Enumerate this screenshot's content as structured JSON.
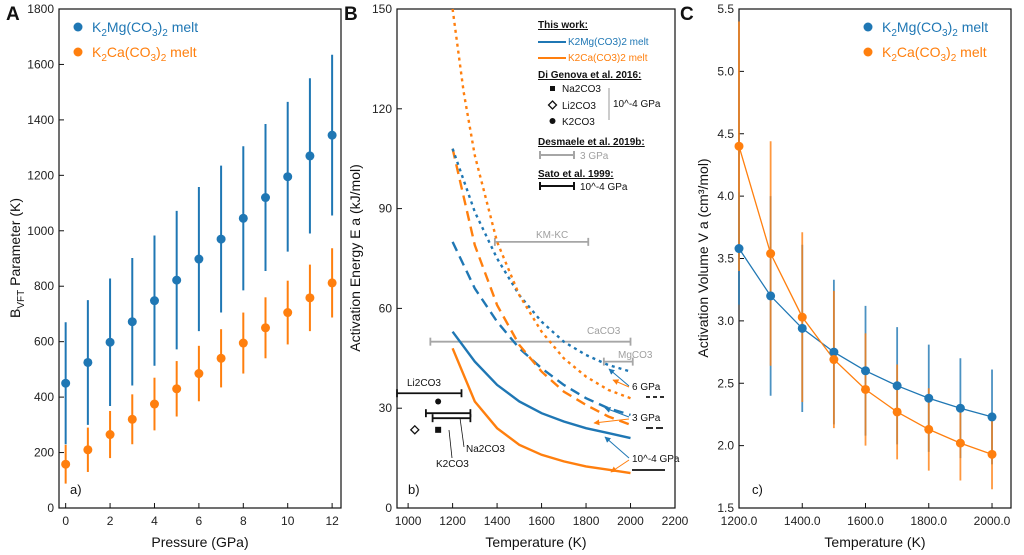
{
  "colors": {
    "blue": "#1f77b4",
    "orange": "#ff7f0e",
    "gray": "#a6a6a6",
    "black": "#111111"
  },
  "chart_data": [
    {
      "type": "scatter",
      "panel_letter": "A",
      "sub_label": "a)",
      "xlabel": "Pressure (GPa)",
      "ylabel": "B_VFT Parameter (K)",
      "ylabel_main": "B",
      "ylabel_sub": "VFT",
      "ylabel_rest": " Parameter (K)",
      "xlim": [
        -0.3,
        12.4
      ],
      "ylim": [
        0,
        1800
      ],
      "xticks": [
        0,
        2,
        4,
        6,
        8,
        10,
        12
      ],
      "yticks": [
        0,
        200,
        400,
        600,
        800,
        1000,
        1200,
        1400,
        1600,
        1800
      ],
      "legend_position": "top-left",
      "series": [
        {
          "name": "K2Mg(CO3)2 melt",
          "legend_main": "K",
          "legend_s1": "2",
          "legend_m2": "Mg(CO",
          "legend_s2": "3",
          "legend_m3": ")",
          "legend_s3": "2",
          "legend_m4": " melt",
          "color": "#1f77b4",
          "x": [
            0,
            1,
            2,
            3,
            4,
            5,
            6,
            7,
            8,
            9,
            10,
            11,
            12
          ],
          "y": [
            450,
            525,
            598,
            672,
            748,
            822,
            898,
            970,
            1045,
            1120,
            1195,
            1270,
            1345
          ],
          "err": [
            220,
            225,
            230,
            230,
            235,
            250,
            260,
            265,
            260,
            265,
            270,
            280,
            290
          ]
        },
        {
          "name": "K2Ca(CO3)2 melt",
          "legend_main": "K",
          "legend_s1": "2",
          "legend_m2": "Ca(CO",
          "legend_s2": "3",
          "legend_m3": ")",
          "legend_s3": "2",
          "legend_m4": " melt",
          "color": "#ff7f0e",
          "x": [
            0,
            1,
            2,
            3,
            4,
            5,
            6,
            7,
            8,
            9,
            10,
            11,
            12
          ],
          "y": [
            158,
            210,
            265,
            320,
            375,
            430,
            485,
            540,
            595,
            650,
            705,
            758,
            812
          ],
          "err": [
            70,
            80,
            85,
            90,
            95,
            100,
            100,
            105,
            110,
            110,
            115,
            120,
            125
          ]
        }
      ]
    },
    {
      "type": "line",
      "panel_letter": "B",
      "sub_label": "b)",
      "xlabel": "Temperature (K)",
      "ylabel": "Activation Energy E a (kJ/mol)",
      "xlim": [
        950,
        2200
      ],
      "ylim": [
        0,
        150
      ],
      "xticks": [
        1000,
        1200,
        1400,
        1600,
        1800,
        2000,
        2200
      ],
      "yticks": [
        0,
        30,
        60,
        90,
        120,
        150
      ],
      "series": [
        {
          "name": "K2Mg(CO3)2 10^-4 GPa",
          "color": "#1f77b4",
          "dash": "solid",
          "x": [
            1200,
            1300,
            1400,
            1500,
            1600,
            1700,
            1800,
            1900,
            2000
          ],
          "y": [
            53,
            44,
            37,
            32,
            28.5,
            26,
            24,
            22.5,
            21
          ]
        },
        {
          "name": "K2Ca(CO3)2 10^-4 GPa",
          "color": "#ff7f0e",
          "dash": "solid",
          "x": [
            1200,
            1300,
            1400,
            1500,
            1600,
            1700,
            1800,
            1900,
            2000
          ],
          "y": [
            48,
            32,
            24,
            19,
            16,
            14,
            12.5,
            11.5,
            10.5
          ]
        },
        {
          "name": "K2Mg(CO3)2 3 GPa",
          "color": "#1f77b4",
          "dash": "dashed",
          "x": [
            1200,
            1300,
            1400,
            1500,
            1600,
            1700,
            1800,
            1900,
            2000
          ],
          "y": [
            80,
            66,
            56,
            48,
            42,
            37,
            33,
            30,
            28
          ]
        },
        {
          "name": "K2Ca(CO3)2 3 GPa",
          "color": "#ff7f0e",
          "dash": "dashed",
          "x": [
            1200,
            1300,
            1400,
            1500,
            1600,
            1700,
            1800,
            1900,
            2000
          ],
          "y": [
            108,
            79,
            61,
            49,
            41,
            35,
            31,
            27.5,
            25
          ]
        },
        {
          "name": "K2Mg(CO3)2 6 GPa",
          "color": "#1f77b4",
          "dash": "dotted",
          "x": [
            1200,
            1300,
            1400,
            1500,
            1600,
            1700,
            1800,
            1900,
            2000
          ],
          "y": [
            108,
            89,
            75,
            64,
            56,
            50,
            46,
            43,
            41
          ]
        },
        {
          "name": "K2Ca(CO3)2 6 GPa",
          "color": "#ff7f0e",
          "dash": "dotted",
          "x": [
            1200,
            1250,
            1300,
            1400,
            1500,
            1600,
            1700,
            1800,
            1900,
            2000
          ],
          "y": [
            150,
            125,
            106,
            80,
            64,
            53,
            45,
            39.5,
            35.5,
            33
          ]
        }
      ],
      "points": [
        {
          "name": "Na2CO3",
          "label": "Na2CO3",
          "symbol": "square",
          "x": 1135,
          "y": 23.5,
          "xerr": 65
        },
        {
          "name": "Li2CO3",
          "label": "Li2CO3",
          "symbol": "diamond",
          "x": 1030,
          "y": 23.5
        },
        {
          "name": "K2CO3",
          "label": "K2CO3",
          "symbol": "circle",
          "x": 1135,
          "y": 32
        }
      ],
      "range_bars": [
        {
          "name": "Li2CO3 range",
          "color": "#111111",
          "x": [
            950,
            1240
          ],
          "y": 34.5
        },
        {
          "name": "KM-KC",
          "label": "KM-KC",
          "color": "#a6a6a6",
          "x": [
            1390,
            1810
          ],
          "y": 80
        },
        {
          "name": "CaCO3",
          "label": "CaCO3",
          "color": "#a6a6a6",
          "x": [
            1100,
            2000
          ],
          "y": 50
        },
        {
          "name": "MgCO3",
          "label": "MgCO3",
          "color": "#a6a6a6",
          "x": [
            1880,
            2010
          ],
          "y": 44
        },
        {
          "name": "Na2CO3 range",
          "color": "#111111",
          "x": [
            1080,
            1280
          ],
          "y": 28.5
        },
        {
          "name": "K2CO3 range",
          "color": "#111111",
          "x": [
            1110,
            1280
          ],
          "y": 27
        }
      ],
      "annotations": [
        {
          "name": "li2co3-label",
          "text": "Li2CO3"
        },
        {
          "name": "na2co3-label",
          "text": "Na2CO3"
        },
        {
          "name": "k2co3-label",
          "text": "K2CO3"
        },
        {
          "name": "kmkc-label",
          "text": "KM-KC"
        },
        {
          "name": "caco3-label",
          "text": "CaCO3"
        },
        {
          "name": "mgco3-label",
          "text": "MgCO3"
        },
        {
          "name": "p6-label",
          "text": "6 GPa"
        },
        {
          "name": "p3-label",
          "text": "3 GPa"
        },
        {
          "name": "p1e4-label",
          "text": "10^-4 GPa"
        }
      ],
      "legend": {
        "this_work": "This work:",
        "mg_entry": "K2Mg(CO3)2 melt",
        "ca_entry": "K2Ca(CO3)2 melt",
        "digenova": "Di Genova et al. 2016:",
        "na2co3": "Na2CO3",
        "li2co3": "Li2CO3",
        "k2co3": "K2CO3",
        "digenova_p": "10^-4 GPa",
        "desmaele": "Desmaele et al. 2019b:",
        "desmaele_p": "3 GPa",
        "sato": "Sato et al. 1999:",
        "sato_p": "10^-4 GPa"
      }
    },
    {
      "type": "scatter",
      "panel_letter": "C",
      "sub_label": "c)",
      "xlabel": "Temperature (K)",
      "ylabel": "Activation Volume V a (cm³/mol)",
      "xlim": [
        1200,
        2060
      ],
      "ylim": [
        1.5,
        5.5
      ],
      "xticks": [
        1200,
        1400,
        1600,
        1800,
        2000
      ],
      "yticks": [
        1.5,
        2.0,
        2.5,
        3.0,
        3.5,
        4.0,
        4.5,
        5.0,
        5.5
      ],
      "legend_position": "top-right",
      "series": [
        {
          "name": "K2Mg(CO3)2 melt",
          "color": "#1f77b4",
          "x": [
            1200,
            1300,
            1400,
            1500,
            1600,
            1700,
            1800,
            1900,
            2000
          ],
          "y": [
            3.58,
            3.2,
            2.94,
            2.75,
            2.6,
            2.48,
            2.38,
            2.3,
            2.23
          ],
          "err": [
            0.45,
            0.8,
            0.67,
            0.58,
            0.52,
            0.47,
            0.43,
            0.4,
            0.38
          ]
        },
        {
          "name": "K2Ca(CO3)2 melt",
          "color": "#ff7f0e",
          "x": [
            1200,
            1300,
            1400,
            1500,
            1600,
            1700,
            1800,
            1900,
            2000
          ],
          "y": [
            4.4,
            3.54,
            3.03,
            2.69,
            2.45,
            2.27,
            2.13,
            2.02,
            1.93
          ],
          "err": [
            1.0,
            0.9,
            0.68,
            0.55,
            0.45,
            0.38,
            0.33,
            0.3,
            0.28
          ]
        }
      ]
    }
  ]
}
